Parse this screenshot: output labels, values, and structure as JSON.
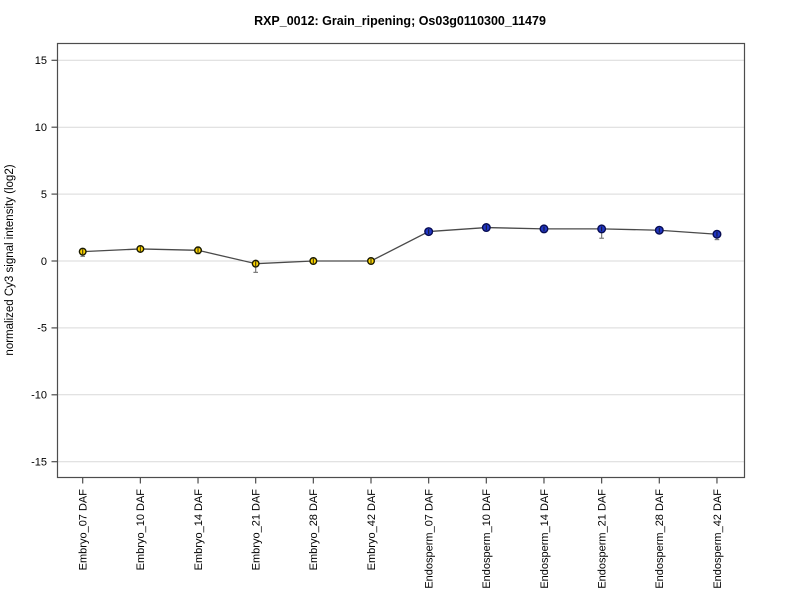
{
  "page": {
    "background": "#ffffff"
  },
  "chart_data": {
    "type": "line",
    "title": "RXP_0012: Grain_ripening; Os03g0110300_11479",
    "xlabel": "",
    "ylabel": "normalized Cy3 signal intensity (log2)",
    "ylim": [
      -16.2,
      16.3
    ],
    "yticks": [
      15,
      10,
      5,
      0,
      -5,
      -10,
      -15
    ],
    "grid": true,
    "legend_position": "none",
    "categories": [
      "Embryo_07 DAF",
      "Embryo_10 DAF",
      "Embryo_14 DAF",
      "Embryo_21 DAF",
      "Embryo_28 DAF",
      "Embryo_42 DAF",
      "Endosperm_07 DAF",
      "Endosperm_10 DAF",
      "Endosperm_14 DAF",
      "Endosperm_21 DAF",
      "Endosperm_28 DAF",
      "Endosperm_42 DAF"
    ],
    "series": [
      {
        "name": "normalized Cy3 signal",
        "values": [
          0.7,
          0.9,
          0.8,
          -0.2,
          0.0,
          0.0,
          2.2,
          2.5,
          2.4,
          2.4,
          2.3,
          2.0
        ],
        "err_low": [
          0.35,
          null,
          0.55,
          -0.85,
          null,
          null,
          null,
          null,
          null,
          1.7,
          null,
          1.6
        ],
        "point_groups": [
          "Embryo",
          "Embryo",
          "Embryo",
          "Embryo",
          "Embryo",
          "Embryo",
          "Endosperm",
          "Endosperm",
          "Endosperm",
          "Endosperm",
          "Endosperm",
          "Endosperm"
        ]
      }
    ],
    "group_styles": {
      "Embryo": {
        "marker_fill": "#fdd500",
        "marker_stroke": "#1a1a00"
      },
      "Endosperm": {
        "marker_fill": "#2136c4",
        "marker_stroke": "#070c52"
      }
    },
    "colors": {
      "line": "#4a4a4a",
      "grid": "#d9d9d9",
      "box": "#4d4d4d",
      "error_bar": "#7a7a7a",
      "tick": "#4d4d4d"
    }
  }
}
